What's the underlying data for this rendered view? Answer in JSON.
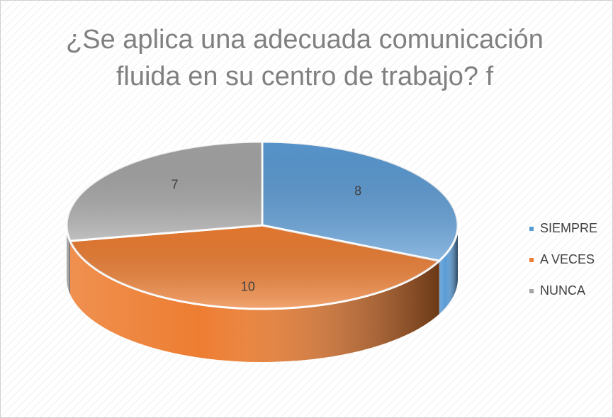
{
  "chart_data": {
    "type": "pie3d",
    "title": "¿Se aplica una adecuada comunicación fluida en su centro de trabajo? f",
    "categories": [
      "SIEMPRE",
      "A VECES",
      "NUNCA"
    ],
    "values": [
      8,
      10,
      7
    ],
    "colors": [
      "#5b9bd5",
      "#ed7d31",
      "#a5a5a5"
    ],
    "legend": "right"
  }
}
